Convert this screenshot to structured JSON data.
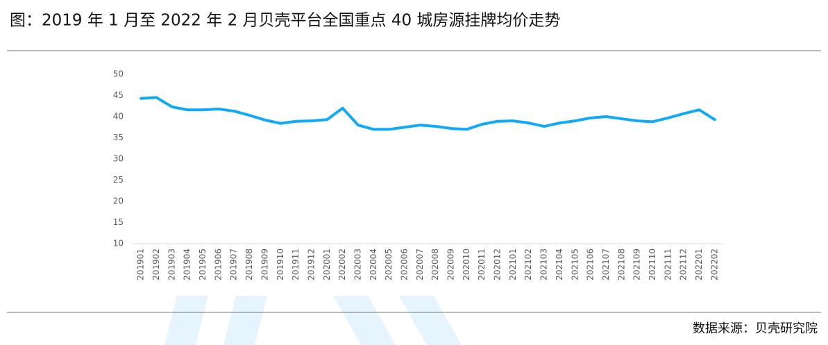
{
  "chart_data": {
    "type": "line",
    "title": "图：2019 年 1 月至 2022 年 2 月贝壳平台全国重点 40 城房源挂牌均价走势",
    "source": "数据来源：贝壳研究院",
    "categories": [
      "201901",
      "201902",
      "201903",
      "201904",
      "201905",
      "201906",
      "201907",
      "201908",
      "201909",
      "201910",
      "201911",
      "201912",
      "202001",
      "202002",
      "202003",
      "202004",
      "202005",
      "202006",
      "202007",
      "202008",
      "202009",
      "202010",
      "202011",
      "202012",
      "202101",
      "202102",
      "202103",
      "202104",
      "202105",
      "202106",
      "202107",
      "202108",
      "202109",
      "202110",
      "202111",
      "202112",
      "202201",
      "202202"
    ],
    "values": [
      44.3,
      44.5,
      42.3,
      41.6,
      41.6,
      41.8,
      41.3,
      40.3,
      39.2,
      38.4,
      38.9,
      39.0,
      39.3,
      42.0,
      38.0,
      37.0,
      37.0,
      37.5,
      38.0,
      37.7,
      37.2,
      37.0,
      38.2,
      38.9,
      39.0,
      38.5,
      37.7,
      38.5,
      39.0,
      39.7,
      40.0,
      39.5,
      39.0,
      38.8,
      39.7,
      40.7,
      41.6,
      39.3
    ],
    "color": "#12a9f7",
    "ylim": [
      10,
      50
    ],
    "yticks": [
      10,
      15,
      20,
      25,
      30,
      35,
      40,
      45,
      50
    ],
    "grid": false
  }
}
